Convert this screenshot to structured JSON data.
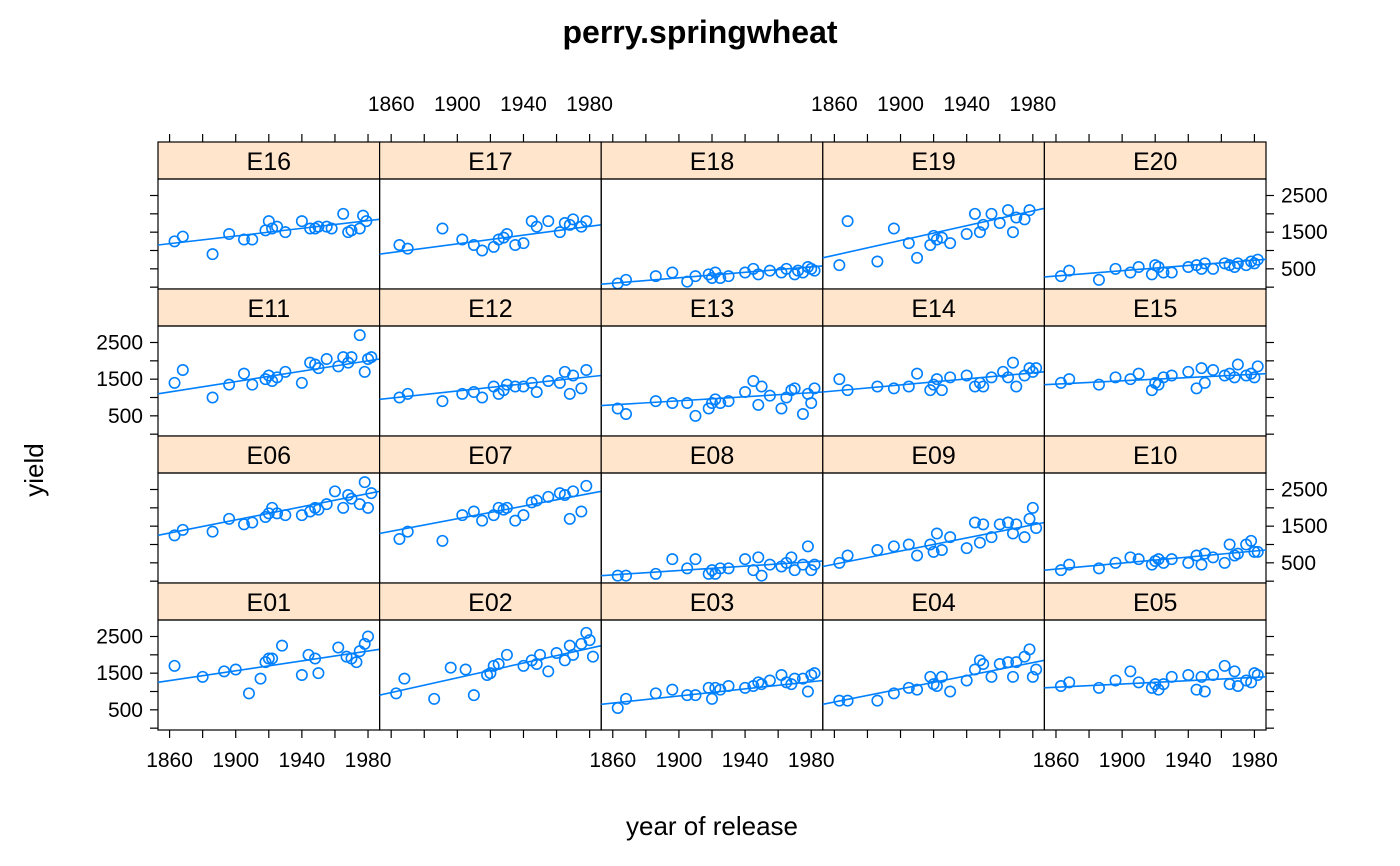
{
  "chart_data": {
    "type": "scatter",
    "title": "perry.springwheat",
    "xlabel": "year of release",
    "ylabel": "yield",
    "xlim": [
      1853,
      1987
    ],
    "ylim": [
      -50,
      2950
    ],
    "x_ticks": [
      1860,
      1900,
      1940,
      1980
    ],
    "y_ticks": [
      500,
      1500,
      2500
    ],
    "grid": false,
    "legend": "none",
    "point_color": "#0080ff",
    "strip_color": "#ffe5cc",
    "rows": [
      [
        "E16",
        "E17",
        "E18",
        "E19",
        "E20"
      ],
      [
        "E11",
        "E12",
        "E13",
        "E14",
        "E15"
      ],
      [
        "E06",
        "E07",
        "E08",
        "E09",
        "E10"
      ],
      [
        "E01",
        "E02",
        "E03",
        "E04",
        "E05"
      ]
    ],
    "panels": [
      {
        "name": "E16",
        "fit": [
          1150,
          1850
        ],
        "x": [
          1863,
          1868,
          1886,
          1896,
          1905,
          1910,
          1918,
          1920,
          1922,
          1925,
          1930,
          1940,
          1945,
          1948,
          1950,
          1955,
          1958,
          1965,
          1968,
          1970,
          1975,
          1977,
          1979
        ],
        "y": [
          1250,
          1380,
          900,
          1450,
          1300,
          1300,
          1550,
          1800,
          1600,
          1650,
          1500,
          1800,
          1600,
          1600,
          1650,
          1650,
          1600,
          2000,
          1500,
          1550,
          1600,
          1950,
          1800
        ]
      },
      {
        "name": "E17",
        "fit": [
          900,
          1700
        ],
        "x": [
          1865,
          1870,
          1891,
          1903,
          1910,
          1915,
          1922,
          1925,
          1928,
          1930,
          1935,
          1940,
          1945,
          1948,
          1955,
          1962,
          1965,
          1968,
          1970,
          1975,
          1978
        ],
        "y": [
          1150,
          1050,
          1600,
          1300,
          1150,
          1000,
          1100,
          1300,
          1350,
          1450,
          1150,
          1200,
          1800,
          1650,
          1800,
          1500,
          1750,
          1700,
          1850,
          1650,
          1800
        ]
      },
      {
        "name": "E18",
        "fit": [
          80,
          580
        ],
        "x": [
          1863,
          1868,
          1886,
          1896,
          1905,
          1910,
          1918,
          1920,
          1922,
          1925,
          1930,
          1940,
          1945,
          1948,
          1955,
          1962,
          1965,
          1970,
          1972,
          1975,
          1978,
          1980,
          1982
        ],
        "y": [
          100,
          200,
          300,
          400,
          150,
          300,
          350,
          250,
          400,
          250,
          300,
          400,
          500,
          350,
          450,
          400,
          500,
          350,
          450,
          400,
          550,
          500,
          450
        ]
      },
      {
        "name": "E19",
        "fit": [
          800,
          2150
        ],
        "x": [
          1863,
          1868,
          1886,
          1896,
          1905,
          1910,
          1918,
          1920,
          1922,
          1925,
          1930,
          1940,
          1945,
          1948,
          1950,
          1955,
          1960,
          1965,
          1968,
          1970,
          1975,
          1978
        ],
        "y": [
          600,
          1800,
          700,
          1600,
          1200,
          800,
          1150,
          1400,
          1300,
          1350,
          1200,
          1450,
          2000,
          1500,
          1700,
          2000,
          1750,
          2100,
          1500,
          1900,
          1850,
          2100
        ]
      },
      {
        "name": "E20",
        "fit": [
          280,
          760
        ],
        "x": [
          1863,
          1868,
          1886,
          1896,
          1905,
          1910,
          1918,
          1920,
          1922,
          1925,
          1930,
          1940,
          1945,
          1948,
          1950,
          1955,
          1962,
          1965,
          1968,
          1970,
          1975,
          1978,
          1980,
          1982
        ],
        "y": [
          300,
          450,
          200,
          500,
          400,
          550,
          350,
          600,
          550,
          400,
          400,
          550,
          600,
          500,
          650,
          500,
          650,
          600,
          550,
          650,
          600,
          700,
          650,
          750
        ]
      },
      {
        "name": "E11",
        "fit": [
          1100,
          2050
        ],
        "x": [
          1863,
          1868,
          1886,
          1896,
          1905,
          1910,
          1918,
          1920,
          1922,
          1925,
          1930,
          1940,
          1945,
          1948,
          1950,
          1955,
          1962,
          1965,
          1968,
          1970,
          1975,
          1978,
          1980,
          1982
        ],
        "y": [
          1400,
          1750,
          1000,
          1350,
          1650,
          1350,
          1500,
          1600,
          1450,
          1550,
          1700,
          1400,
          1950,
          1900,
          1800,
          2050,
          1850,
          2100,
          1950,
          2100,
          2700,
          1700,
          2050,
          2100
        ]
      },
      {
        "name": "E12",
        "fit": [
          950,
          1600
        ],
        "x": [
          1865,
          1870,
          1891,
          1903,
          1910,
          1915,
          1922,
          1925,
          1928,
          1930,
          1935,
          1940,
          1945,
          1948,
          1955,
          1962,
          1965,
          1968,
          1970,
          1975,
          1978
        ],
        "y": [
          1000,
          1100,
          900,
          1100,
          1150,
          1000,
          1300,
          1100,
          1200,
          1350,
          1300,
          1300,
          1400,
          1150,
          1450,
          1400,
          1700,
          1100,
          1600,
          1250,
          1750
        ]
      },
      {
        "name": "E13",
        "fit": [
          780,
          1150
        ],
        "x": [
          1863,
          1868,
          1886,
          1896,
          1905,
          1910,
          1918,
          1920,
          1922,
          1925,
          1930,
          1940,
          1945,
          1948,
          1950,
          1955,
          1962,
          1965,
          1968,
          1970,
          1975,
          1978,
          1980,
          1982
        ],
        "y": [
          700,
          550,
          900,
          850,
          850,
          500,
          700,
          850,
          950,
          850,
          900,
          1150,
          1450,
          800,
          1300,
          1050,
          700,
          1000,
          1200,
          1250,
          550,
          1100,
          850,
          1250
        ]
      },
      {
        "name": "E14",
        "fit": [
          1150,
          1700
        ],
        "x": [
          1863,
          1868,
          1886,
          1896,
          1905,
          1910,
          1918,
          1920,
          1922,
          1925,
          1930,
          1940,
          1945,
          1948,
          1950,
          1955,
          1962,
          1965,
          1968,
          1970,
          1975,
          1978,
          1980,
          1982
        ],
        "y": [
          1500,
          1200,
          1300,
          1250,
          1300,
          1650,
          1200,
          1350,
          1500,
          1200,
          1550,
          1600,
          1300,
          1400,
          1300,
          1550,
          1700,
          1550,
          1950,
          1300,
          1600,
          1800,
          1700,
          1800
        ]
      },
      {
        "name": "E15",
        "fit": [
          1350,
          1650
        ],
        "x": [
          1863,
          1868,
          1886,
          1896,
          1905,
          1910,
          1918,
          1920,
          1922,
          1925,
          1930,
          1940,
          1945,
          1948,
          1950,
          1955,
          1962,
          1965,
          1968,
          1970,
          1975,
          1978,
          1980,
          1982
        ],
        "y": [
          1400,
          1500,
          1350,
          1550,
          1500,
          1650,
          1200,
          1400,
          1350,
          1550,
          1600,
          1700,
          1250,
          1800,
          1400,
          1750,
          1600,
          1650,
          1550,
          1900,
          1600,
          1650,
          1550,
          1850
        ]
      },
      {
        "name": "E06",
        "fit": [
          1250,
          2450
        ],
        "x": [
          1863,
          1868,
          1886,
          1896,
          1905,
          1910,
          1918,
          1920,
          1922,
          1925,
          1930,
          1940,
          1945,
          1948,
          1950,
          1955,
          1960,
          1965,
          1968,
          1970,
          1975,
          1978,
          1980,
          1982
        ],
        "y": [
          1250,
          1400,
          1350,
          1700,
          1550,
          1600,
          1750,
          1850,
          2000,
          1850,
          1800,
          1800,
          1900,
          2000,
          1950,
          2100,
          2450,
          2000,
          2350,
          2250,
          2100,
          2700,
          2000,
          2400
        ]
      },
      {
        "name": "E07",
        "fit": [
          1300,
          2450
        ],
        "x": [
          1865,
          1870,
          1891,
          1903,
          1910,
          1915,
          1922,
          1925,
          1928,
          1930,
          1935,
          1940,
          1945,
          1948,
          1955,
          1962,
          1965,
          1968,
          1970,
          1975,
          1978
        ],
        "y": [
          1150,
          1350,
          1100,
          1800,
          1900,
          1650,
          1800,
          2000,
          1950,
          2000,
          1650,
          1800,
          2150,
          2200,
          2300,
          2400,
          2350,
          1700,
          2450,
          1900,
          2600
        ]
      },
      {
        "name": "E08",
        "fit": [
          150,
          550
        ],
        "x": [
          1863,
          1868,
          1886,
          1896,
          1905,
          1910,
          1918,
          1920,
          1922,
          1925,
          1930,
          1940,
          1945,
          1948,
          1950,
          1955,
          1962,
          1965,
          1968,
          1970,
          1975,
          1978,
          1980,
          1982
        ],
        "y": [
          150,
          150,
          200,
          600,
          350,
          600,
          200,
          300,
          200,
          350,
          350,
          600,
          300,
          650,
          150,
          450,
          400,
          500,
          650,
          300,
          450,
          950,
          300,
          450
        ]
      },
      {
        "name": "E09",
        "fit": [
          400,
          1600
        ],
        "x": [
          1863,
          1868,
          1886,
          1896,
          1905,
          1910,
          1918,
          1920,
          1922,
          1925,
          1930,
          1940,
          1945,
          1948,
          1950,
          1955,
          1960,
          1965,
          1968,
          1970,
          1975,
          1978,
          1980,
          1982
        ],
        "y": [
          500,
          700,
          850,
          950,
          1000,
          700,
          1000,
          800,
          1300,
          850,
          1200,
          900,
          1600,
          1050,
          1550,
          1200,
          1550,
          1600,
          1300,
          1550,
          1200,
          1700,
          2000,
          1450
        ]
      },
      {
        "name": "E10",
        "fit": [
          300,
          850
        ],
        "x": [
          1863,
          1868,
          1886,
          1896,
          1905,
          1910,
          1918,
          1920,
          1922,
          1925,
          1930,
          1940,
          1945,
          1948,
          1950,
          1955,
          1962,
          1965,
          1968,
          1970,
          1975,
          1978,
          1980,
          1982
        ],
        "y": [
          300,
          450,
          350,
          500,
          650,
          600,
          450,
          550,
          600,
          500,
          600,
          500,
          700,
          450,
          750,
          650,
          500,
          1000,
          700,
          750,
          1000,
          1100,
          800,
          800
        ]
      },
      {
        "name": "E01",
        "fit": [
          1250,
          2150
        ],
        "x": [
          1863,
          1880,
          1893,
          1900,
          1908,
          1915,
          1918,
          1920,
          1922,
          1928,
          1940,
          1944,
          1948,
          1950,
          1962,
          1967,
          1970,
          1973,
          1975,
          1978,
          1980
        ],
        "y": [
          1700,
          1400,
          1550,
          1600,
          950,
          1350,
          1800,
          1900,
          1900,
          2250,
          1450,
          2000,
          1900,
          1500,
          2200,
          1950,
          1900,
          1800,
          2100,
          2300,
          2500
        ]
      },
      {
        "name": "E02",
        "fit": [
          900,
          2250
        ],
        "x": [
          1863,
          1868,
          1886,
          1896,
          1905,
          1910,
          1918,
          1920,
          1922,
          1925,
          1930,
          1940,
          1945,
          1948,
          1950,
          1955,
          1960,
          1965,
          1968,
          1970,
          1975,
          1978,
          1980,
          1982
        ],
        "y": [
          950,
          1350,
          800,
          1650,
          1600,
          900,
          1450,
          1500,
          1700,
          1750,
          2000,
          1700,
          1850,
          1750,
          2000,
          1550,
          2050,
          1850,
          2250,
          2000,
          2300,
          2600,
          2400,
          1950
        ]
      },
      {
        "name": "E03",
        "fit": [
          650,
          1300
        ],
        "x": [
          1863,
          1868,
          1886,
          1896,
          1905,
          1910,
          1918,
          1920,
          1922,
          1925,
          1930,
          1940,
          1945,
          1948,
          1950,
          1955,
          1962,
          1965,
          1968,
          1970,
          1975,
          1978,
          1980,
          1982
        ],
        "y": [
          550,
          800,
          950,
          1050,
          900,
          900,
          1100,
          800,
          1100,
          1050,
          1150,
          1100,
          1150,
          1250,
          1200,
          1300,
          1450,
          1250,
          1200,
          1350,
          1350,
          1000,
          1450,
          1500
        ]
      },
      {
        "name": "E04",
        "fit": [
          650,
          1850
        ],
        "x": [
          1863,
          1868,
          1886,
          1896,
          1905,
          1910,
          1918,
          1920,
          1922,
          1925,
          1930,
          1940,
          1945,
          1948,
          1950,
          1955,
          1960,
          1965,
          1968,
          1970,
          1975,
          1978,
          1980,
          1982
        ],
        "y": [
          750,
          750,
          750,
          950,
          1100,
          1050,
          1400,
          1200,
          1150,
          1400,
          1000,
          1300,
          1600,
          1850,
          1750,
          1400,
          1750,
          1800,
          1400,
          1800,
          1950,
          2150,
          1400,
          1600
        ]
      },
      {
        "name": "E05",
        "fit": [
          1100,
          1400
        ],
        "x": [
          1863,
          1868,
          1886,
          1896,
          1905,
          1910,
          1918,
          1920,
          1922,
          1925,
          1930,
          1940,
          1945,
          1948,
          1950,
          1955,
          1962,
          1965,
          1968,
          1970,
          1975,
          1978,
          1980,
          1982
        ],
        "y": [
          1150,
          1250,
          1100,
          1300,
          1550,
          1250,
          1100,
          1200,
          1050,
          1200,
          1400,
          1450,
          1050,
          1400,
          1000,
          1450,
          1700,
          1200,
          1550,
          1150,
          1300,
          1250,
          1500,
          1450
        ]
      }
    ]
  }
}
